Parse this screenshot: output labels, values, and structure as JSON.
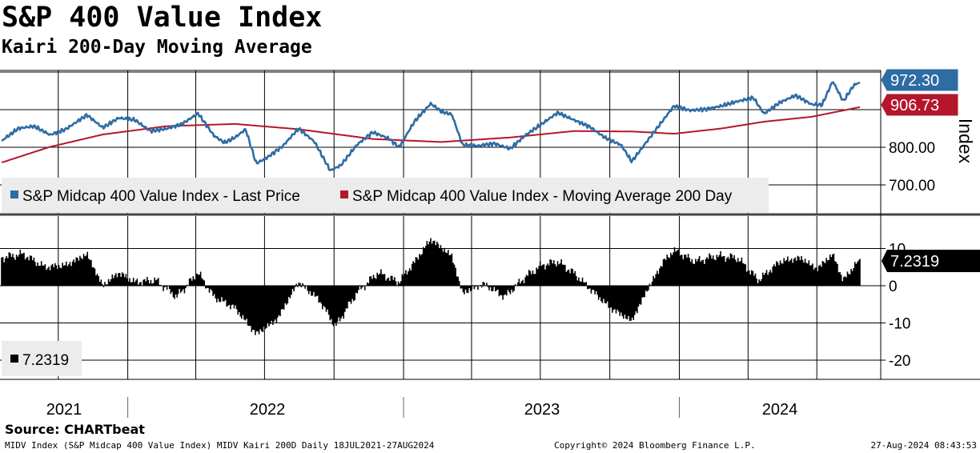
{
  "header": {
    "title": "S&P 400 Value Index",
    "subtitle": "Kairi 200-Day Moving Average"
  },
  "footer": {
    "source": "Source: CHARTbeat",
    "description": "MIDV Index (S&P Midcap 400 Value Index) MIDV Kairi 200D  Daily 18JUL2021-27AUG2024",
    "copyright": "Copyright© 2024 Bloomberg Finance L.P.",
    "timestamp": "27-Aug-2024 08:43:53"
  },
  "colors": {
    "price_line": "#2e6ca4",
    "ma_line": "#b5162b",
    "kairi_bars": "#000000",
    "legend_bg": "#ececec",
    "last_price_tag": "#2e6ca4",
    "ma_tag": "#b5162b",
    "kairi_tag": "#000000"
  },
  "chart_data": [
    {
      "type": "line",
      "ylabel": "Index",
      "ylim": [
        655,
        1015
      ],
      "y_ticks": [
        "800.00",
        "700.00"
      ],
      "grid": true,
      "legend_position": "bottom-left",
      "series": [
        {
          "name": "S&P Midcap 400 Value Index - Last Price",
          "last_value_label": "972.30",
          "points": [
            [
              "2021-07-19",
              818
            ],
            [
              "2021-08-09",
              850
            ],
            [
              "2021-08-30",
              856
            ],
            [
              "2021-09-20",
              833
            ],
            [
              "2021-10-11",
              848
            ],
            [
              "2021-11-08",
              886
            ],
            [
              "2021-11-29",
              852
            ],
            [
              "2021-12-20",
              878
            ],
            [
              "2022-01-10",
              873
            ],
            [
              "2022-01-31",
              843
            ],
            [
              "2022-02-21",
              849
            ],
            [
              "2022-03-14",
              862
            ],
            [
              "2022-04-04",
              890
            ],
            [
              "2022-04-25",
              831
            ],
            [
              "2022-05-09",
              812
            ],
            [
              "2022-05-23",
              826
            ],
            [
              "2022-06-06",
              848
            ],
            [
              "2022-06-20",
              757
            ],
            [
              "2022-07-04",
              772
            ],
            [
              "2022-07-25",
              803
            ],
            [
              "2022-08-15",
              850
            ],
            [
              "2022-09-05",
              815
            ],
            [
              "2022-09-26",
              738
            ],
            [
              "2022-10-10",
              752
            ],
            [
              "2022-10-31",
              806
            ],
            [
              "2022-11-21",
              840
            ],
            [
              "2022-12-12",
              824
            ],
            [
              "2022-12-26",
              800
            ],
            [
              "2023-01-16",
              870
            ],
            [
              "2023-02-06",
              916
            ],
            [
              "2023-02-20",
              895
            ],
            [
              "2023-03-06",
              887
            ],
            [
              "2023-03-20",
              806
            ],
            [
              "2023-04-10",
              804
            ],
            [
              "2023-05-01",
              810
            ],
            [
              "2023-05-22",
              796
            ],
            [
              "2023-06-12",
              833
            ],
            [
              "2023-07-03",
              862
            ],
            [
              "2023-07-24",
              892
            ],
            [
              "2023-08-14",
              873
            ],
            [
              "2023-09-04",
              855
            ],
            [
              "2023-09-25",
              825
            ],
            [
              "2023-10-16",
              806
            ],
            [
              "2023-10-30",
              762
            ],
            [
              "2023-11-20",
              818
            ],
            [
              "2023-12-11",
              873
            ],
            [
              "2023-12-25",
              910
            ],
            [
              "2024-01-15",
              898
            ],
            [
              "2024-02-05",
              901
            ],
            [
              "2024-02-26",
              910
            ],
            [
              "2024-03-18",
              922
            ],
            [
              "2024-04-08",
              932
            ],
            [
              "2024-04-22",
              889
            ],
            [
              "2024-05-13",
              919
            ],
            [
              "2024-06-03",
              938
            ],
            [
              "2024-06-24",
              914
            ],
            [
              "2024-07-08",
              913
            ],
            [
              "2024-07-22",
              976
            ],
            [
              "2024-08-05",
              922
            ],
            [
              "2024-08-19",
              965
            ],
            [
              "2024-08-27",
              972.3
            ]
          ]
        },
        {
          "name": "S&P Midcap 400 Value Index - Moving Average 200 Day",
          "last_value_label": "906.73",
          "points": [
            [
              "2021-07-19",
              760
            ],
            [
              "2021-09-20",
              801
            ],
            [
              "2021-11-29",
              834
            ],
            [
              "2022-02-21",
              856
            ],
            [
              "2022-05-23",
              862
            ],
            [
              "2022-08-15",
              848
            ],
            [
              "2022-11-21",
              822
            ],
            [
              "2023-02-20",
              814
            ],
            [
              "2023-05-22",
              826
            ],
            [
              "2023-08-14",
              843
            ],
            [
              "2023-10-30",
              842
            ],
            [
              "2023-12-25",
              836
            ],
            [
              "2024-02-26",
              850
            ],
            [
              "2024-04-22",
              868
            ],
            [
              "2024-06-24",
              881
            ],
            [
              "2024-08-27",
              906.73
            ]
          ]
        }
      ]
    },
    {
      "type": "bar",
      "title": "",
      "ylim": [
        -27,
        18
      ],
      "y_ticks": [
        "10",
        "0",
        "-10",
        "-20"
      ],
      "grid": true,
      "legend_position": "bottom-left",
      "series": [
        {
          "name": "",
          "legend_label": "7.2319",
          "last_value_label": "7.2319",
          "points": [
            [
              "2021-07-19",
              7.6
            ],
            [
              "2021-08-16",
              8.5
            ],
            [
              "2021-09-13",
              5.0
            ],
            [
              "2021-10-11",
              5.5
            ],
            [
              "2021-11-08",
              8.5
            ],
            [
              "2021-11-29",
              0.0
            ],
            [
              "2021-12-20",
              3.5
            ],
            [
              "2022-01-10",
              1.0
            ],
            [
              "2022-02-07",
              1.5
            ],
            [
              "2022-03-07",
              -3.0
            ],
            [
              "2022-04-04",
              3.5
            ],
            [
              "2022-04-25",
              -3.0
            ],
            [
              "2022-05-23",
              -6.0
            ],
            [
              "2022-06-20",
              -13.0
            ],
            [
              "2022-07-18",
              -9.0
            ],
            [
              "2022-08-15",
              1.0
            ],
            [
              "2022-09-12",
              -4.0
            ],
            [
              "2022-10-03",
              -11.0
            ],
            [
              "2022-10-31",
              -2.0
            ],
            [
              "2022-11-28",
              3.5
            ],
            [
              "2022-12-26",
              1.0
            ],
            [
              "2023-01-16",
              6.5
            ],
            [
              "2023-02-06",
              12.5
            ],
            [
              "2023-03-06",
              8.0
            ],
            [
              "2023-03-20",
              -2.0
            ],
            [
              "2023-04-17",
              0.5
            ],
            [
              "2023-05-15",
              -3.0
            ],
            [
              "2023-06-12",
              2.5
            ],
            [
              "2023-07-03",
              5.5
            ],
            [
              "2023-07-24",
              6.5
            ],
            [
              "2023-08-14",
              3.5
            ],
            [
              "2023-09-11",
              -2.0
            ],
            [
              "2023-10-02",
              -6.0
            ],
            [
              "2023-10-30",
              -9.5
            ],
            [
              "2023-11-20",
              -1.0
            ],
            [
              "2023-12-11",
              6.5
            ],
            [
              "2023-12-25",
              9.5
            ],
            [
              "2024-01-22",
              6.5
            ],
            [
              "2024-02-19",
              8.0
            ],
            [
              "2024-03-18",
              7.5
            ],
            [
              "2024-04-15",
              1.5
            ],
            [
              "2024-05-13",
              6.5
            ],
            [
              "2024-06-10",
              7.5
            ],
            [
              "2024-07-01",
              4.5
            ],
            [
              "2024-07-22",
              8.5
            ],
            [
              "2024-08-05",
              1.5
            ],
            [
              "2024-08-27",
              7.2319
            ]
          ]
        }
      ]
    }
  ],
  "x_axis": {
    "labels": [
      {
        "label": "2021",
        "date": "2021-07-01"
      },
      {
        "label": "2022",
        "date": "2022-01-01"
      },
      {
        "label": "2023",
        "date": "2023-01-01"
      },
      {
        "label": "2024",
        "date": "2024-01-01"
      }
    ]
  }
}
